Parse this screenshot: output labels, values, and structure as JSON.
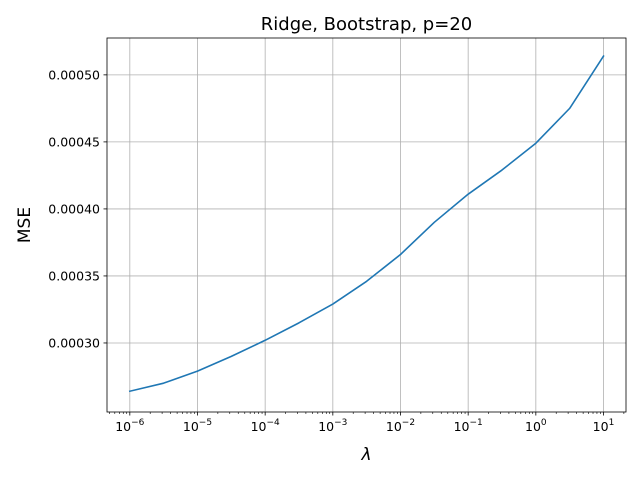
{
  "chart_data": {
    "type": "line",
    "title": "Ridge, Bootstrap, p=20",
    "xlabel": "λ",
    "ylabel": "MSE",
    "xscale": "log",
    "xlim": [
      4.6e-07,
      21.5
    ],
    "ylim": [
      0.0002485,
      0.0005275
    ],
    "grid": true,
    "x_ticks": [
      {
        "value": 1e-06,
        "base": "10",
        "exp": "−6"
      },
      {
        "value": 1e-05,
        "base": "10",
        "exp": "−5"
      },
      {
        "value": 0.0001,
        "base": "10",
        "exp": "−4"
      },
      {
        "value": 0.001,
        "base": "10",
        "exp": "−3"
      },
      {
        "value": 0.01,
        "base": "10",
        "exp": "−2"
      },
      {
        "value": 0.1,
        "base": "10",
        "exp": "−1"
      },
      {
        "value": 1,
        "base": "10",
        "exp": "0"
      },
      {
        "value": 10,
        "base": "10",
        "exp": "1"
      }
    ],
    "y_ticks": [
      {
        "value": 0.0003,
        "label": "0.00030"
      },
      {
        "value": 0.00035,
        "label": "0.00035"
      },
      {
        "value": 0.0004,
        "label": "0.00040"
      },
      {
        "value": 0.00045,
        "label": "0.00045"
      },
      {
        "value": 0.0005,
        "label": "0.00050"
      }
    ],
    "series": [
      {
        "color": "#1f77b4",
        "x": [
          1e-06,
          3.16e-06,
          1e-05,
          3.16e-05,
          0.0001,
          0.000316,
          0.001,
          0.00316,
          0.01,
          0.0316,
          0.1,
          0.316,
          1,
          3.16,
          10
        ],
        "y": [
          0.000264,
          0.00027,
          0.000279,
          0.00029,
          0.000302,
          0.000315,
          0.000329,
          0.000346,
          0.000366,
          0.00039,
          0.000411,
          0.000429,
          0.000449,
          0.000475,
          0.000514
        ]
      }
    ]
  }
}
